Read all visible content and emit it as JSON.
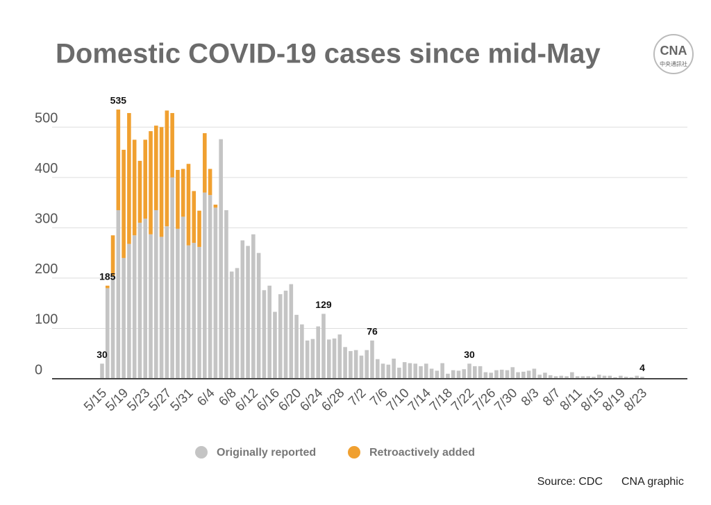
{
  "chart_data": {
    "type": "stacked_bar",
    "title": "Domestic COVID-19 cases since mid-May",
    "logo": {
      "text": "CNA",
      "subtext": "中央通訊社"
    },
    "source": "Source: CDC",
    "credit": "CNA graphic",
    "categories": [
      "5/15",
      null,
      null,
      null,
      "5/19",
      null,
      null,
      null,
      "5/23",
      null,
      null,
      null,
      "5/27",
      null,
      null,
      null,
      "5/31",
      null,
      null,
      null,
      "6/4",
      null,
      null,
      null,
      "6/8",
      null,
      null,
      null,
      "6/12",
      null,
      null,
      null,
      "6/16",
      null,
      null,
      null,
      "6/20",
      null,
      null,
      null,
      "6/24",
      null,
      null,
      null,
      "6/28",
      null,
      null,
      null,
      "7/2",
      null,
      null,
      null,
      "7/6",
      null,
      null,
      null,
      "7/10",
      null,
      null,
      null,
      "7/14",
      null,
      null,
      null,
      "7/18",
      null,
      null,
      null,
      "7/22",
      null,
      null,
      null,
      "7/26",
      null,
      null,
      null,
      "7/30",
      null,
      null,
      null,
      "8/3",
      null,
      null,
      null,
      "8/7",
      null,
      null,
      null,
      "8/11",
      null,
      null,
      null,
      "8/15",
      null,
      null,
      null,
      "8/19",
      null,
      null,
      null,
      "8/23"
    ],
    "series": [
      {
        "name": "Originally reported",
        "color": "#c4c4c4",
        "values": [
          30,
          180,
          205,
          335,
          240,
          268,
          285,
          310,
          318,
          287,
          335,
          282,
          303,
          400,
          298,
          322,
          265,
          270,
          262,
          370,
          365,
          340,
          476,
          335,
          213,
          220,
          275,
          264,
          287,
          250,
          176,
          185,
          133,
          168,
          175,
          188,
          127,
          108,
          76,
          79,
          104,
          129,
          78,
          80,
          88,
          63,
          55,
          57,
          46,
          57,
          76,
          39,
          30,
          28,
          40,
          22,
          33,
          31,
          30,
          25,
          30,
          20,
          16,
          31,
          10,
          17,
          16,
          19,
          30,
          25,
          25,
          13,
          12,
          17,
          18,
          17,
          23,
          13,
          14,
          16,
          20,
          8,
          12,
          7,
          5,
          6,
          5,
          13,
          5,
          5,
          5,
          4,
          8,
          6,
          6,
          3,
          6,
          4,
          3,
          6,
          4
        ]
      },
      {
        "name": "Retroactively added",
        "color": "#f0a030",
        "values": [
          0,
          5,
          80,
          200,
          215,
          260,
          190,
          123,
          157,
          205,
          168,
          218,
          230,
          128,
          117,
          95,
          162,
          103,
          72,
          118,
          52,
          6,
          0,
          0,
          0,
          0,
          0,
          0,
          0,
          0,
          0,
          0,
          0,
          0,
          0,
          0,
          0,
          0,
          0,
          0,
          0,
          0,
          0,
          0,
          0,
          0,
          0,
          0,
          0,
          0,
          0,
          0,
          0,
          0,
          0,
          0,
          0,
          0,
          0,
          0,
          0,
          0,
          0,
          0,
          0,
          0,
          0,
          0,
          0,
          0,
          0,
          0,
          0,
          0,
          0,
          0,
          0,
          0,
          0,
          0,
          0,
          0,
          0,
          0,
          0,
          0,
          0,
          0,
          0,
          0,
          0,
          0,
          0,
          0,
          0,
          0,
          0,
          0,
          0,
          0,
          0
        ]
      }
    ],
    "annotations": [
      {
        "text": "30",
        "index": 0
      },
      {
        "text": "185",
        "index": 1
      },
      {
        "text": "535",
        "index": 3
      },
      {
        "text": "129",
        "index": 41
      },
      {
        "text": "76",
        "index": 50
      },
      {
        "text": "30",
        "index": 68
      },
      {
        "text": "4",
        "index": 100
      }
    ],
    "ylim": [
      0,
      550
    ],
    "yticks": [
      0,
      100,
      200,
      300,
      400,
      500
    ],
    "grid": true
  }
}
